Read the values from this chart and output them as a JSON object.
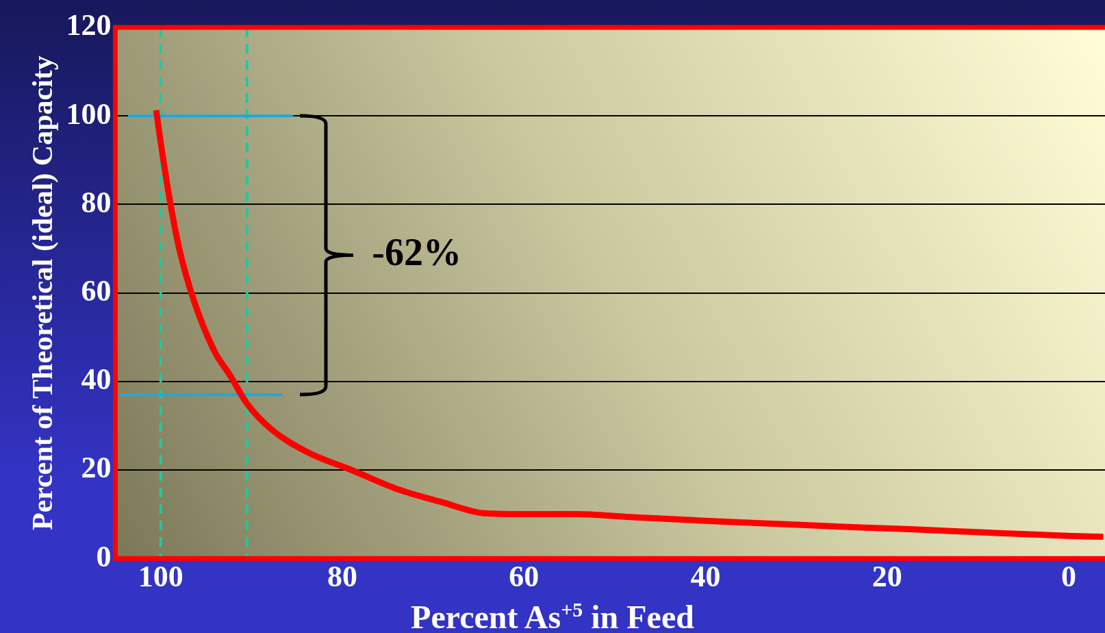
{
  "chart_data": {
    "type": "line",
    "xlabel": "Percent As$^{+5}$ in Feed",
    "ylabel": "Percent of Theoretical (ideal) Capacity",
    "xlim": [
      105,
      -4
    ],
    "xticks": [
      100,
      80,
      60,
      40,
      20,
      0
    ],
    "ylim": [
      0,
      120
    ],
    "yticks": [
      0,
      20,
      40,
      60,
      80,
      100,
      120
    ],
    "grid": "y",
    "legend": false,
    "marker": "none",
    "line_style": "solid",
    "series": [
      {
        "color": "#ff0000",
        "x": [
          100.5,
          100,
          99,
          97.9,
          96.3,
          94,
          92.4,
          90.5,
          87.7,
          83.8,
          79,
          73.7,
          69,
          64.3,
          59.6,
          54.1,
          48.7,
          40.9,
          33,
          25.2,
          17.4,
          9.6,
          0,
          -3.8
        ],
        "values": [
          101.3,
          94,
          81,
          69.5,
          58,
          46.5,
          41.5,
          35,
          29,
          24,
          20,
          15.5,
          12.7,
          10.2,
          10,
          10,
          9.4,
          8.6,
          7.9,
          7.2,
          6.6,
          5.9,
          5.1,
          4.9
        ]
      },
      {
        "color": "#1ea7e0",
        "x": [
          103.6,
          85.4
        ],
        "values": [
          100,
          100
        ]
      },
      {
        "color": "#1ea7e0",
        "x": [
          104.5,
          86.6
        ],
        "values": [
          37,
          37
        ]
      }
    ],
    "ref_lines": [
      {
        "axis": "x",
        "value": 100,
        "color": "#20c8a0",
        "line_style": "dashed"
      },
      {
        "axis": "x",
        "value": 90.5,
        "color": "#20c8a0",
        "line_style": "dashed"
      }
    ],
    "annotations": [
      "-62%"
    ]
  }
}
